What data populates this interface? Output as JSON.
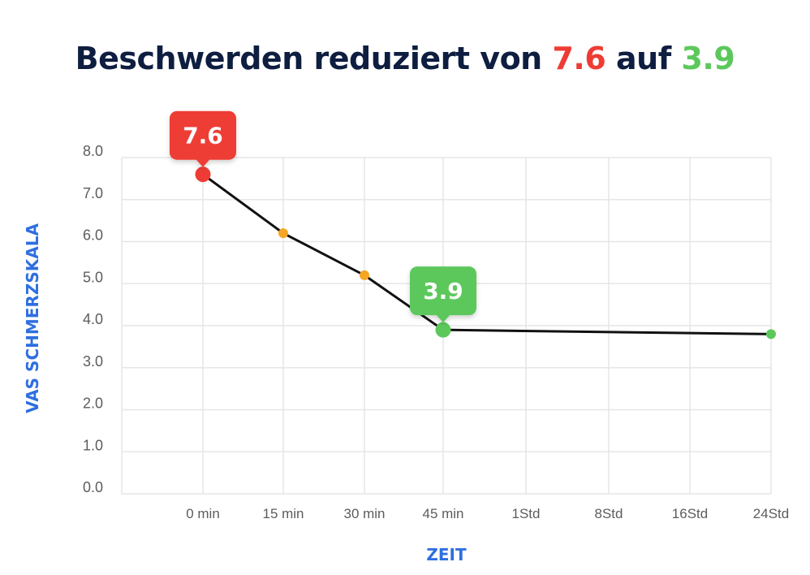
{
  "title": {
    "prefix": "Beschwerden reduziert von ",
    "from": "7.6",
    "middle": " auf ",
    "to": "3.9"
  },
  "colors": {
    "title": "#0e1e40",
    "from": "#ee3c35",
    "to": "#5cc85c",
    "axis_label": "#2f6fe0",
    "mid_point": "#f5a623",
    "line": "#111111",
    "grid": "#e6e6e6"
  },
  "chart_data": {
    "type": "line",
    "xlabel": "ZEIT",
    "ylabel": "VAS SCHMERZSKALA",
    "ylim": [
      0,
      8
    ],
    "yticks": [
      "0.0",
      "1.0",
      "2.0",
      "3.0",
      "4.0",
      "5.0",
      "6.0",
      "7.0",
      "8.0"
    ],
    "categories": [
      "0 min",
      "15 min",
      "30 min",
      "45 min",
      "1Std",
      "8Std",
      "16Std",
      "24Std"
    ],
    "points": [
      {
        "x": "0 min",
        "y": 7.6,
        "marker": "red"
      },
      {
        "x": "15 min",
        "y": 6.2,
        "marker": "orange"
      },
      {
        "x": "30 min",
        "y": 5.2,
        "marker": "orange"
      },
      {
        "x": "45 min",
        "y": 3.9,
        "marker": "green"
      },
      {
        "x": "24Std",
        "y": 3.8,
        "marker": "green"
      }
    ],
    "callouts": [
      {
        "x": "0 min",
        "y": 7.6,
        "label": "7.6",
        "color": "red"
      },
      {
        "x": "45 min",
        "y": 3.9,
        "label": "3.9",
        "color": "green"
      }
    ],
    "grid": true
  }
}
